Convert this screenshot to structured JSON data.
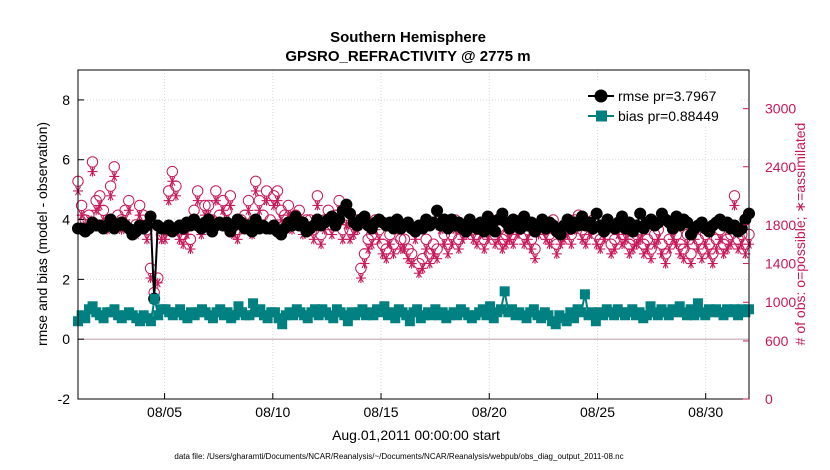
{
  "chart_data": {
    "type": "line",
    "title": "Southern Hemisphere",
    "subtitle": "GPSRO_REFRACTIVITY @ 2775 m",
    "xlabel": "Aug.01,2011 00:00:00 start",
    "ylabel": "rmse and bias (model - observation)",
    "y2label": "# of obs: o=possible; ∗=assimilated",
    "footnote": "data file: /Users/gharamti/Documents/NCAR/Reanalysis/~/Documents/NCAR/Reanalysis/webpub/obs_diag_output_2011-08.nc",
    "xlim": [
      1.0,
      32.0
    ],
    "ylim": [
      -2,
      9
    ],
    "y2lim": [
      0,
      3400
    ],
    "x_ticks": [
      5,
      10,
      15,
      20,
      25,
      30
    ],
    "x_tick_labels": [
      "08/05",
      "08/10",
      "08/15",
      "08/20",
      "08/25",
      "08/30"
    ],
    "y_ticks": [
      -2,
      0,
      2,
      4,
      6,
      8
    ],
    "y2_ticks": [
      0,
      600,
      1000,
      1400,
      1800,
      2400,
      3000
    ],
    "legend_position": "top-right",
    "series": [
      {
        "name": "rmse pr=3.7967",
        "color": "#000000",
        "marker": "circle",
        "axis": "left",
        "values": [
          3.7,
          3.7,
          3.6,
          3.7,
          3.9,
          3.8,
          3.8,
          3.7,
          3.8,
          4.0,
          3.7,
          3.8,
          3.9,
          3.8,
          3.7,
          3.5,
          3.6,
          3.8,
          3.7,
          3.8,
          4.1,
          1.35,
          3.8,
          3.7,
          3.7,
          3.8,
          3.6,
          3.7,
          3.8,
          3.7,
          3.9,
          3.8,
          4.0,
          3.8,
          3.7,
          3.9,
          4.0,
          3.6,
          3.8,
          3.9,
          3.8,
          3.9,
          3.6,
          3.8,
          4.0,
          3.9,
          3.7,
          3.8,
          3.6,
          4.0,
          3.7,
          3.8,
          3.7,
          3.7,
          3.8,
          3.6,
          3.5,
          3.7,
          3.9,
          3.8,
          4.1,
          3.8,
          3.9,
          3.6,
          3.7,
          3.8,
          4.0,
          3.8,
          3.9,
          4.0,
          4.1,
          3.8,
          4.0,
          4.3,
          4.5,
          4.2,
          3.9,
          3.8,
          4.0,
          4.1,
          3.8,
          3.7,
          3.9,
          4.0,
          3.9,
          3.8,
          3.9,
          3.7,
          4.0,
          3.7,
          3.8,
          3.9,
          3.7,
          3.6,
          3.8,
          3.7,
          4.0,
          3.8,
          3.9,
          4.3,
          3.8,
          4.0,
          3.7,
          4.0,
          3.8,
          3.9,
          3.7,
          3.6,
          4.0,
          3.8,
          3.7,
          3.9,
          3.6,
          4.1,
          3.8,
          3.6,
          4.0,
          4.2,
          3.9,
          3.7,
          4.0,
          3.8,
          3.7,
          4.1,
          3.8,
          3.9,
          3.6,
          3.8,
          4.0,
          3.7,
          3.9,
          3.8,
          3.6,
          3.5,
          3.8,
          4.0,
          3.7,
          3.9,
          3.8,
          4.1,
          3.8,
          3.9,
          3.7,
          4.2,
          3.8,
          3.6,
          4.0,
          3.8,
          3.7,
          3.9,
          4.1,
          3.7,
          3.9,
          3.6,
          3.8,
          4.2,
          3.7,
          3.9,
          4.0,
          3.8,
          3.9,
          4.2,
          4.0,
          3.9,
          3.7,
          4.1,
          3.8,
          4.0,
          3.9,
          3.5,
          3.7,
          3.8,
          3.9,
          3.7,
          3.6,
          3.8,
          3.9,
          4.0,
          3.8,
          3.9,
          3.7,
          3.8,
          3.6,
          3.7,
          4.0,
          4.2
        ]
      },
      {
        "name": "bias pr=0.88449",
        "color": "#008080",
        "marker": "square",
        "axis": "left",
        "values": [
          0.6,
          0.8,
          0.7,
          1.0,
          1.1,
          0.9,
          0.8,
          0.7,
          0.9,
          0.9,
          1.0,
          0.8,
          0.7,
          0.8,
          0.9,
          0.8,
          0.7,
          0.6,
          0.8,
          0.7,
          0.6,
          1.35,
          0.8,
          1.0,
          1.0,
          0.9,
          0.8,
          0.9,
          1.0,
          0.8,
          0.7,
          0.9,
          0.8,
          0.9,
          1.0,
          0.9,
          0.8,
          0.7,
          0.9,
          1.0,
          0.8,
          0.9,
          0.7,
          0.8,
          1.1,
          0.9,
          0.8,
          0.8,
          1.2,
          0.9,
          1.0,
          0.8,
          0.7,
          0.9,
          0.9,
          0.7,
          0.5,
          0.8,
          0.9,
          0.8,
          1.0,
          0.9,
          0.8,
          0.7,
          0.9,
          1.0,
          0.8,
          1.0,
          0.9,
          0.8,
          0.7,
          1.0,
          0.9,
          0.8,
          0.6,
          0.9,
          0.8,
          0.9,
          1.0,
          0.8,
          0.9,
          0.8,
          1.0,
          0.9,
          1.1,
          0.8,
          0.9,
          0.7,
          1.0,
          0.9,
          0.8,
          0.6,
          0.9,
          1.0,
          0.7,
          0.8,
          0.9,
          0.8,
          1.0,
          0.8,
          0.9,
          0.7,
          0.8,
          0.9,
          0.8,
          1.0,
          0.9,
          0.8,
          0.7,
          0.8,
          0.9,
          1.0,
          0.8,
          1.1,
          0.7,
          0.9,
          1.0,
          1.6,
          0.9,
          1.0,
          0.8,
          0.9,
          0.8,
          0.7,
          0.9,
          1.0,
          0.8,
          0.7,
          0.9,
          0.8,
          0.6,
          0.5,
          0.8,
          0.7,
          0.6,
          0.9,
          0.7,
          1.0,
          0.9,
          1.5,
          0.8,
          0.9,
          0.6,
          0.9,
          0.8,
          1.0,
          0.9,
          0.8,
          1.0,
          0.9,
          0.8,
          0.9,
          1.0,
          0.8,
          0.9,
          0.7,
          0.8,
          1.1,
          0.9,
          0.8,
          1.0,
          0.9,
          0.8,
          1.0,
          0.9,
          1.1,
          0.9,
          0.8,
          1.0,
          0.8,
          1.2,
          0.9,
          0.8,
          1.0,
          0.9,
          1.0,
          0.9,
          0.8,
          1.0,
          0.9,
          1.0,
          0.8,
          1.0,
          0.9,
          1.0
        ]
      },
      {
        "name": "possible",
        "color": "#c8185a",
        "marker": "open-circle",
        "axis": "right",
        "values": [
          2250,
          2000,
          1850,
          1900,
          2450,
          2050,
          2100,
          1950,
          1800,
          2200,
          2400,
          1900,
          1850,
          1950,
          2050,
          1750,
          1800,
          2000,
          1900,
          1750,
          1350,
          1100,
          1250,
          1700,
          1750,
          2150,
          2350,
          2200,
          1750,
          1700,
          1800,
          1650,
          1950,
          2150,
          1800,
          2000,
          2000,
          1850,
          2150,
          1900,
          2050,
          1950,
          2100,
          1800,
          1750,
          1850,
          1900,
          2050,
          1800,
          2250,
          2050,
          1900,
          2150,
          1850,
          2100,
          2150,
          1950,
          1900,
          2000,
          1850,
          1900,
          1950,
          1800,
          1850,
          1850,
          1750,
          2100,
          1700,
          1850,
          1950,
          1800,
          1900,
          2050,
          1750,
          1900,
          1750,
          1800,
          1850,
          1350,
          1500,
          1650,
          1700,
          1850,
          1750,
          1600,
          1550,
          1700,
          1600,
          1850,
          1650,
          1650,
          1550,
          1500,
          1750,
          1400,
          1450,
          1650,
          1500,
          1600,
          1550,
          1850,
          1700,
          1600,
          1700,
          1850,
          1650,
          1750,
          1800,
          1850,
          1750,
          1700,
          1800,
          1650,
          1750,
          1850,
          1700,
          1750,
          1650,
          1700,
          1750,
          1700,
          1800,
          1850,
          1700,
          1750,
          1650,
          1550,
          1800,
          1850,
          1750,
          1700,
          1850,
          1600,
          1700,
          1750,
          1800,
          1700,
          1850,
          1900,
          1750,
          1700,
          1800,
          1850,
          1700,
          1650,
          1750,
          1850,
          1600,
          1650,
          1800,
          1700,
          1750,
          1600,
          1650,
          1700,
          1750,
          1600,
          1650,
          1550,
          1700,
          1750,
          1600,
          1500,
          1650,
          1750,
          1700,
          1600,
          1550,
          1700,
          1500,
          1750,
          1650,
          1550,
          1700,
          1600,
          1500,
          1650,
          1750,
          1600,
          1650,
          1700,
          2100,
          1650,
          1700,
          1600,
          1700
        ]
      },
      {
        "name": "assimilated",
        "color": "#c8185a",
        "marker": "asterisk",
        "axis": "right",
        "values": [
          2150,
          1900,
          1800,
          1850,
          2350,
          1950,
          2000,
          1850,
          1750,
          2100,
          2300,
          1800,
          1750,
          1850,
          1950,
          1700,
          1700,
          1900,
          1800,
          1650,
          1250,
          1050,
          1200,
          1650,
          1650,
          2050,
          2250,
          2100,
          1650,
          1600,
          1700,
          1550,
          1850,
          2050,
          1700,
          1900,
          1900,
          1750,
          2050,
          1800,
          1950,
          1850,
          2000,
          1700,
          1650,
          1750,
          1800,
          1950,
          1700,
          2150,
          1950,
          1800,
          2050,
          1750,
          2000,
          2050,
          1850,
          1800,
          1900,
          1750,
          1800,
          1850,
          1700,
          1750,
          1750,
          1650,
          2000,
          1600,
          1750,
          1850,
          1700,
          1800,
          1950,
          1650,
          1800,
          1650,
          1700,
          1750,
          1250,
          1400,
          1550,
          1600,
          1750,
          1650,
          1500,
          1450,
          1600,
          1500,
          1750,
          1550,
          1550,
          1450,
          1400,
          1650,
          1300,
          1350,
          1550,
          1400,
          1500,
          1450,
          1750,
          1600,
          1500,
          1600,
          1750,
          1550,
          1650,
          1700,
          1750,
          1650,
          1600,
          1700,
          1550,
          1650,
          1750,
          1600,
          1650,
          1550,
          1600,
          1650,
          1600,
          1700,
          1750,
          1600,
          1650,
          1550,
          1450,
          1700,
          1750,
          1650,
          1600,
          1750,
          1500,
          1600,
          1650,
          1700,
          1600,
          1750,
          1800,
          1650,
          1600,
          1700,
          1750,
          1600,
          1550,
          1650,
          1750,
          1500,
          1550,
          1700,
          1600,
          1650,
          1500,
          1550,
          1600,
          1650,
          1500,
          1550,
          1450,
          1600,
          1650,
          1500,
          1400,
          1550,
          1650,
          1600,
          1500,
          1450,
          1600,
          1400,
          1650,
          1550,
          1450,
          1600,
          1500,
          1400,
          1550,
          1650,
          1500,
          1550,
          1600,
          2000,
          1550,
          1600,
          1500,
          1600
        ]
      }
    ]
  }
}
